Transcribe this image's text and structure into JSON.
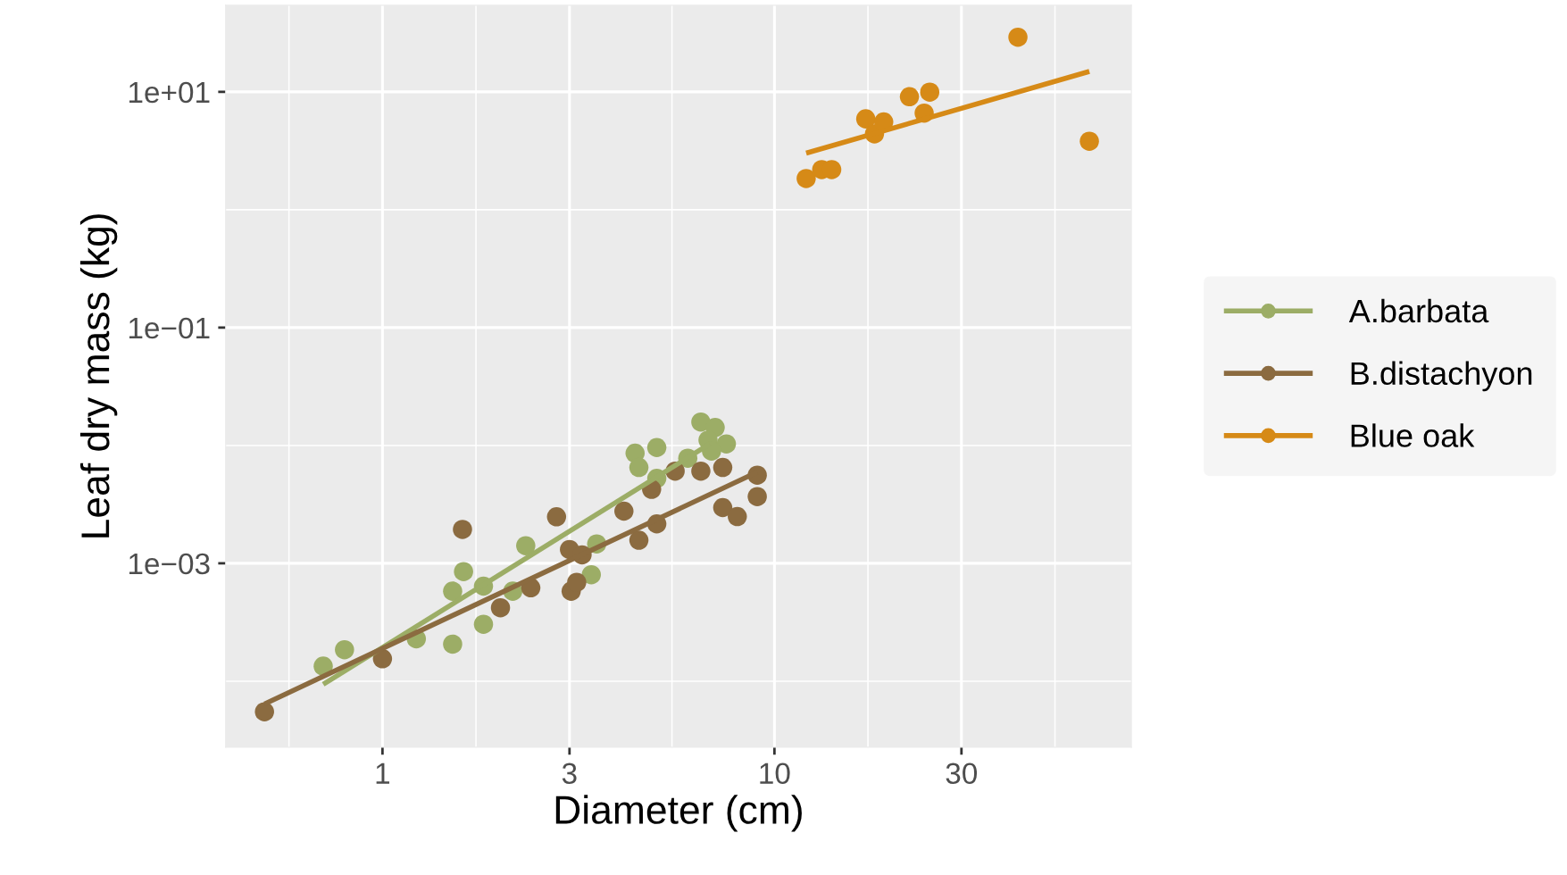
{
  "chart_data": {
    "type": "scatter",
    "xlabel": "Diameter (cm)",
    "ylabel": "Leaf dry mass (kg)",
    "log": "xy",
    "grid": true,
    "legend": "right",
    "marker": "circle",
    "xlim": [
      0.398,
      81.4
    ],
    "xticks": [
      1,
      3,
      10,
      30
    ],
    "ylim": [
      2.75e-05,
      54.3
    ],
    "yticks": [
      {
        "value": 10,
        "label": "1e+01"
      },
      {
        "value": 0.1,
        "label": "1e−01"
      },
      {
        "value": 0.001,
        "label": "1e−03"
      }
    ],
    "series": [
      {
        "name": "A.barbata",
        "color": "#9cad66",
        "x": [
          0.706,
          0.8,
          1.22,
          1.51,
          1.51,
          1.61,
          1.81,
          1.81,
          2.15,
          2.32,
          3.41,
          3.52,
          4.41,
          4.51,
          5.01,
          5.01,
          6.01,
          6.49,
          7.06,
          6.77,
          7.54,
          6.91
        ],
        "values": [
          0.000134,
          0.000185,
          0.000229,
          0.000206,
          0.00058,
          0.00085,
          0.000304,
          0.00064,
          0.00058,
          0.00141,
          0.0008,
          0.00146,
          0.0086,
          0.0065,
          0.0096,
          0.00525,
          0.0078,
          0.0158,
          0.0142,
          0.0111,
          0.0103,
          0.00895
        ]
      },
      {
        "name": "B.distachyon",
        "color": "#8b6b40",
        "x": [
          0.5,
          1.0,
          1.6,
          2.0,
          2.39,
          2.78,
          3.03,
          3.13,
          3.0,
          3.23,
          4.13,
          4.51,
          5.01,
          4.86,
          5.58,
          6.49,
          7.38,
          7.38,
          8.04,
          9.04,
          9.04
        ],
        "values": [
          5.5e-05,
          0.000155,
          0.00194,
          0.00042,
          0.00062,
          0.00248,
          0.00058,
          0.00069,
          0.00131,
          0.00118,
          0.00277,
          0.00157,
          0.00216,
          0.00424,
          0.00605,
          0.00605,
          0.0065,
          0.00297,
          0.00249,
          0.0056,
          0.00368
        ]
      },
      {
        "name": "Blue oak",
        "color": "#d68a17",
        "x": [
          12.05,
          13.2,
          14.0,
          17.1,
          18.0,
          19.0,
          22.1,
          24.9,
          24.1,
          41.8,
          63.6
        ],
        "values": [
          1.84,
          2.19,
          2.19,
          5.9,
          4.4,
          5.56,
          9.1,
          9.95,
          6.6,
          29.1,
          3.81
        ]
      },
      {
        "type": "line",
        "marker": "none",
        "color": "#9cad66",
        "x": [
          0.706,
          6.84
        ],
        "values": [
          9.4e-05,
          0.0103
        ]
      },
      {
        "type": "line",
        "marker": "none",
        "color": "#8b6b40",
        "x": [
          0.5,
          9.04
        ],
        "values": [
          6.4e-05,
          0.00594
        ]
      },
      {
        "type": "line",
        "marker": "none",
        "color": "#d68a17",
        "x": [
          12.05,
          63.6
        ],
        "values": [
          3.02,
          14.9
        ]
      }
    ]
  }
}
